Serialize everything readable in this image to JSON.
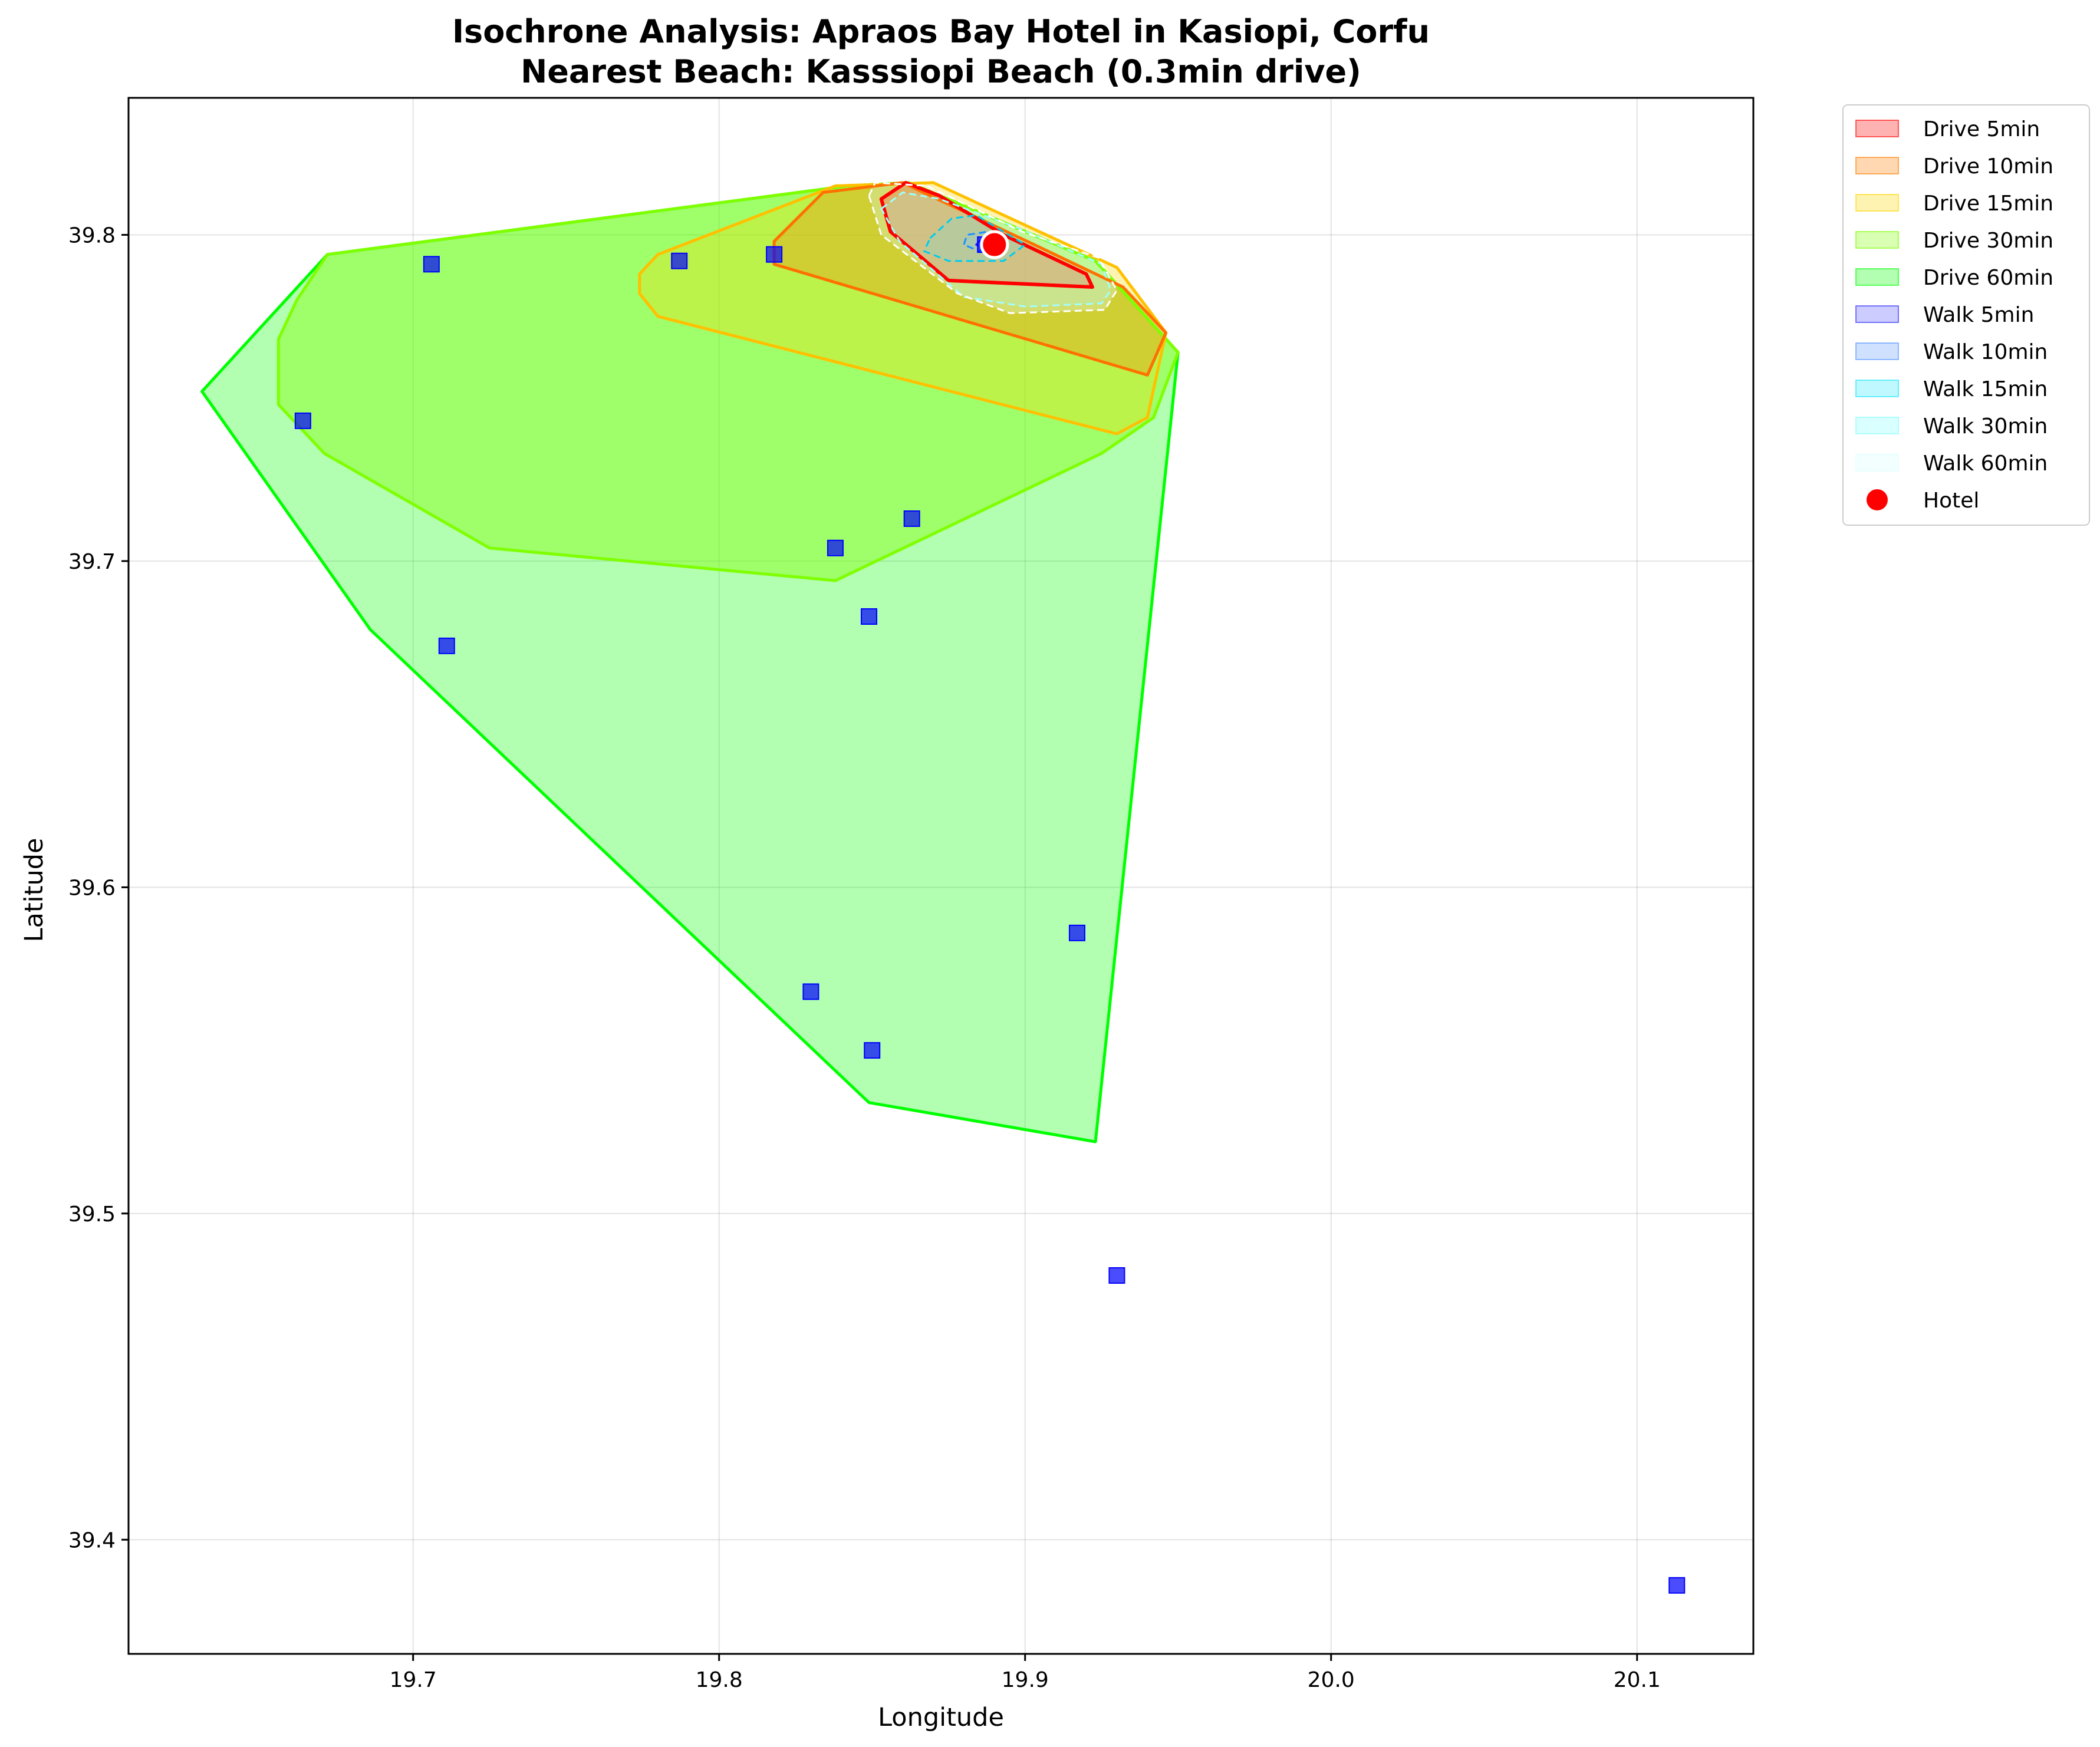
{
  "chart_data": {
    "type": "area",
    "title": "Isochrone Analysis: Apraos Bay Hotel in Kasiopi, Corfu",
    "subtitle": "Nearest Beach: Kasssiopi Beach (0.3min drive)",
    "xlabel": "Longitude",
    "ylabel": "Latitude",
    "xlim": [
      19.607,
      20.138
    ],
    "ylim": [
      39.365,
      39.842
    ],
    "xticks": [
      19.7,
      19.8,
      19.9,
      20.0,
      20.1
    ],
    "xtick_labels": [
      "19.7",
      "19.8",
      "19.9",
      "20.0",
      "20.1"
    ],
    "yticks": [
      39.4,
      39.5,
      39.6,
      39.7,
      39.8
    ],
    "ytick_labels": [
      "39.4",
      "39.5",
      "39.6",
      "39.7",
      "39.8"
    ],
    "grid": true,
    "legend_position": "outside-right",
    "series": [
      {
        "name": "Drive 60min",
        "fill": "#00ff00",
        "fill_opacity": 0.3,
        "stroke": "#00ff00",
        "stroke_width": 5,
        "points": [
          [
            19.631,
            39.752
          ],
          [
            19.672,
            39.794
          ],
          [
            19.842,
            39.815
          ],
          [
            19.862,
            39.816
          ],
          [
            19.923,
            39.792
          ],
          [
            19.95,
            39.764
          ],
          [
            19.923,
            39.522
          ],
          [
            19.849,
            39.534
          ],
          [
            19.686,
            39.679
          ]
        ]
      },
      {
        "name": "Drive 30min",
        "fill": "#7fff00",
        "fill_opacity": 0.4,
        "stroke": "#7fff00",
        "stroke_width": 5,
        "points": [
          [
            19.672,
            39.794
          ],
          [
            19.842,
            39.815
          ],
          [
            19.862,
            39.816
          ],
          [
            19.923,
            39.792
          ],
          [
            19.95,
            39.764
          ],
          [
            19.942,
            39.744
          ],
          [
            19.925,
            39.733
          ],
          [
            19.838,
            39.694
          ],
          [
            19.725,
            39.704
          ],
          [
            19.671,
            39.733
          ],
          [
            19.656,
            39.748
          ],
          [
            19.656,
            39.768
          ],
          [
            19.662,
            39.78
          ]
        ]
      },
      {
        "name": "Drive 15min",
        "fill": "#ffd700",
        "fill_opacity": 0.3,
        "stroke": "#ffc000",
        "stroke_width": 5,
        "points": [
          [
            19.78,
            39.794
          ],
          [
            19.838,
            39.815
          ],
          [
            19.87,
            39.816
          ],
          [
            19.93,
            39.79
          ],
          [
            19.946,
            39.77
          ],
          [
            19.94,
            39.744
          ],
          [
            19.93,
            39.739
          ],
          [
            19.78,
            39.775
          ],
          [
            19.774,
            39.782
          ],
          [
            19.774,
            39.788
          ]
        ]
      },
      {
        "name": "Drive 10min",
        "fill": "#ff7f00",
        "fill_opacity": 0.3,
        "stroke": "#ff7000",
        "stroke_width": 5,
        "points": [
          [
            19.818,
            39.798
          ],
          [
            19.834,
            39.813
          ],
          [
            19.86,
            39.816
          ],
          [
            19.903,
            39.797
          ],
          [
            19.932,
            39.784
          ],
          [
            19.946,
            39.77
          ],
          [
            19.94,
            39.757
          ],
          [
            19.818,
            39.791
          ]
        ]
      },
      {
        "name": "Drive 5min",
        "fill": "#ff0000",
        "fill_opacity": 0.3,
        "stroke": "#ff0000",
        "stroke_width": 6,
        "points": [
          [
            19.853,
            39.811
          ],
          [
            19.861,
            39.816
          ],
          [
            19.872,
            39.812
          ],
          [
            19.893,
            39.8
          ],
          [
            19.92,
            39.788
          ],
          [
            19.922,
            39.784
          ],
          [
            19.875,
            39.786
          ],
          [
            19.856,
            39.801
          ]
        ]
      },
      {
        "name": "Walk 5min",
        "fill": "#0000ff",
        "fill_opacity": 0.2,
        "stroke": "#2222ff",
        "stroke_width": 3,
        "dashed": true,
        "points": [
          [
            19.884,
            39.797
          ],
          [
            19.886,
            39.799
          ],
          [
            19.889,
            39.799
          ],
          [
            19.89,
            39.797
          ],
          [
            19.887,
            39.795
          ]
        ]
      },
      {
        "name": "Walk 10min",
        "fill": "#4488ff",
        "fill_opacity": 0.2,
        "stroke": "#1e90ff",
        "stroke_width": 3,
        "dashed": true,
        "points": [
          [
            19.88,
            39.797
          ],
          [
            19.881,
            39.8
          ],
          [
            19.888,
            39.801
          ],
          [
            19.892,
            39.797
          ],
          [
            19.885,
            39.795
          ]
        ]
      },
      {
        "name": "Walk 15min",
        "fill": "#00e5ff",
        "fill_opacity": 0.2,
        "stroke": "#00ccee",
        "stroke_width": 3,
        "dashed": true,
        "points": [
          [
            19.869,
            39.799
          ],
          [
            19.876,
            39.805
          ],
          [
            19.884,
            39.806
          ],
          [
            19.9,
            39.797
          ],
          [
            19.893,
            39.792
          ],
          [
            19.875,
            39.792
          ],
          [
            19.867,
            39.795
          ]
        ]
      },
      {
        "name": "Walk 30min",
        "fill": "#80ffff",
        "fill_opacity": 0.2,
        "stroke": "#a0ffff",
        "stroke_width": 3,
        "dashed": true,
        "points": [
          [
            19.853,
            39.808
          ],
          [
            19.86,
            39.813
          ],
          [
            19.872,
            39.811
          ],
          [
            19.898,
            39.802
          ],
          [
            19.925,
            39.791
          ],
          [
            19.928,
            39.783
          ],
          [
            19.925,
            39.779
          ],
          [
            19.9,
            39.778
          ],
          [
            19.88,
            39.781
          ],
          [
            19.859,
            39.798
          ]
        ]
      },
      {
        "name": "Walk 60min",
        "fill": "#e0ffff",
        "fill_opacity": 0.3,
        "stroke": "#ffffff",
        "stroke_width": 3,
        "dashed": true,
        "points": [
          [
            19.849,
            39.812
          ],
          [
            19.851,
            39.816
          ],
          [
            19.868,
            39.815
          ],
          [
            19.899,
            39.801
          ],
          [
            19.924,
            39.793
          ],
          [
            19.93,
            39.783
          ],
          [
            19.926,
            39.777
          ],
          [
            19.895,
            39.776
          ],
          [
            19.878,
            39.782
          ],
          [
            19.853,
            39.8
          ]
        ]
      }
    ],
    "hotel": {
      "name": "Hotel",
      "lon": 19.89,
      "lat": 39.797,
      "color": "#ff0000"
    },
    "beaches": [
      {
        "lon": 19.706,
        "lat": 39.791
      },
      {
        "lon": 19.787,
        "lat": 39.792
      },
      {
        "lon": 19.818,
        "lat": 39.794
      },
      {
        "lon": 19.887,
        "lat": 39.797
      },
      {
        "lon": 19.664,
        "lat": 39.743
      },
      {
        "lon": 19.863,
        "lat": 39.713
      },
      {
        "lon": 19.838,
        "lat": 39.704
      },
      {
        "lon": 19.849,
        "lat": 39.683
      },
      {
        "lon": 19.711,
        "lat": 39.674
      },
      {
        "lon": 19.917,
        "lat": 39.586
      },
      {
        "lon": 19.83,
        "lat": 39.568
      },
      {
        "lon": 19.85,
        "lat": 39.55
      },
      {
        "lon": 19.93,
        "lat": 39.481
      },
      {
        "lon": 20.113,
        "lat": 39.386
      }
    ],
    "beach_color": "#0000ff",
    "legend": [
      {
        "label": "Drive 5min",
        "color": "#ff0000",
        "opacity": 0.3,
        "kind": "patch"
      },
      {
        "label": "Drive 10min",
        "color": "#ff7f00",
        "opacity": 0.3,
        "kind": "patch"
      },
      {
        "label": "Drive 15min",
        "color": "#ffd700",
        "opacity": 0.3,
        "kind": "patch"
      },
      {
        "label": "Drive 30min",
        "color": "#7fff00",
        "opacity": 0.3,
        "kind": "patch"
      },
      {
        "label": "Drive 60min",
        "color": "#00ff00",
        "opacity": 0.3,
        "kind": "patch"
      },
      {
        "label": "Walk 5min",
        "color": "#0000ff",
        "opacity": 0.2,
        "kind": "patch"
      },
      {
        "label": "Walk 10min",
        "color": "#4488ff",
        "opacity": 0.25,
        "kind": "patch"
      },
      {
        "label": "Walk 15min",
        "color": "#00e5ff",
        "opacity": 0.25,
        "kind": "patch"
      },
      {
        "label": "Walk 30min",
        "color": "#80ffff",
        "opacity": 0.3,
        "kind": "patch"
      },
      {
        "label": "Walk 60min",
        "color": "#e0ffff",
        "opacity": 0.4,
        "kind": "patch"
      },
      {
        "label": "Hotel",
        "color": "#ff0000",
        "opacity": 1,
        "kind": "marker"
      }
    ]
  }
}
